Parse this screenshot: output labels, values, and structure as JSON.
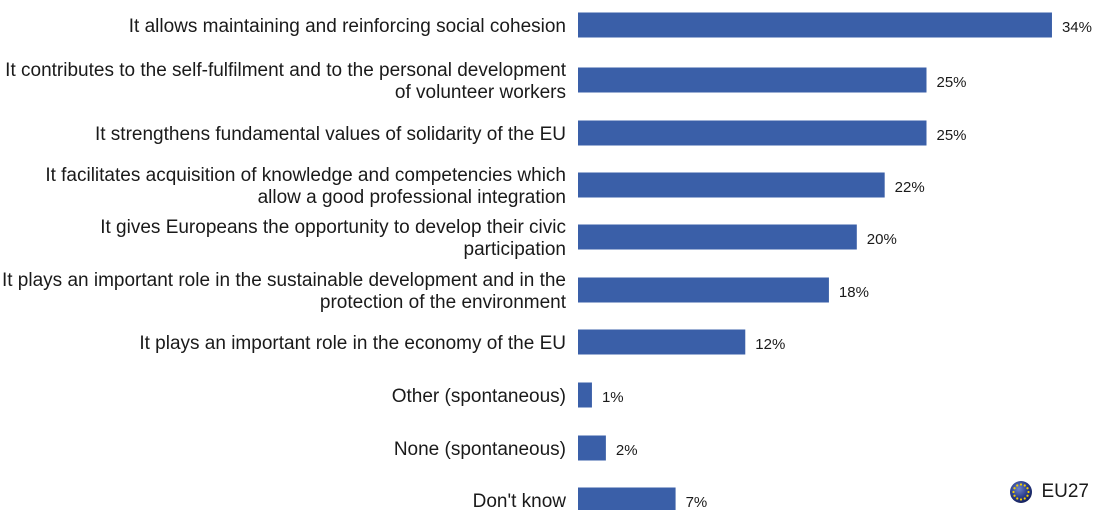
{
  "chart_data": {
    "type": "bar",
    "orientation": "horizontal",
    "categories": [
      [
        "It allows maintaining and reinforcing social cohesion"
      ],
      [
        "It contributes to the self-fulfilment and to the personal development",
        "of volunteer workers"
      ],
      [
        "It strengthens fundamental values of solidarity of the EU"
      ],
      [
        "It facilitates acquisition of knowledge and competencies which",
        "allow a good professional integration"
      ],
      [
        "It gives Europeans the opportunity to develop their civic",
        "participation"
      ],
      [
        "It plays an important role in the sustainable development and in the",
        "protection of the environment"
      ],
      [
        "It plays an important role in the economy of the EU"
      ],
      [
        "Other (spontaneous)"
      ],
      [
        "None (spontaneous)"
      ],
      [
        "Don't know"
      ]
    ],
    "values": [
      34,
      25,
      25,
      22,
      20,
      18,
      12,
      1,
      2,
      7
    ],
    "value_labels": [
      "34%",
      "25%",
      "25%",
      "22%",
      "20%",
      "18%",
      "12%",
      "1%",
      "2%",
      "7%"
    ],
    "series": [
      {
        "name": "EU27",
        "color": "#3a5fa8"
      }
    ],
    "legend": {
      "label": "EU27",
      "icon": "eu-flag-globe-icon",
      "position": "bottom-right"
    },
    "xlim": [
      0,
      40
    ],
    "grid": false
  }
}
